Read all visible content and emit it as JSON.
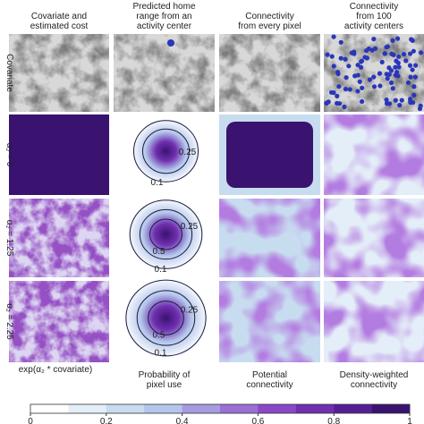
{
  "column_headers": [
    [
      "Covariate and",
      "estimated cost"
    ],
    [
      "Predicted home",
      "range from an",
      "activity center"
    ],
    [
      "Connectivity",
      "from every pixel"
    ],
    [
      "Connectivity",
      "from 100",
      "activity centers"
    ]
  ],
  "row_labels": [
    "Covariate",
    "α₂ = 0",
    "α₂ = 1.25",
    "α₂ = 2.25"
  ],
  "contour_labels": [
    [
      "0.25",
      "0.1"
    ],
    [
      "0.25",
      "0.5",
      "0.1"
    ],
    [
      "0.25",
      "0.5",
      "0.1"
    ]
  ],
  "bottom_labels": [
    [
      "exp(α₂ * covariate)"
    ],
    [
      "Probability of",
      "pixel use"
    ],
    [
      "Potential",
      "connectivity"
    ],
    [
      "Density-weighted",
      "connectivity"
    ]
  ],
  "colorbar": {
    "lim": [
      0,
      1
    ],
    "ticks": [
      0,
      0.2,
      0.4,
      0.6,
      0.8,
      1
    ],
    "colors": [
      "#ffffff",
      "#e4eef8",
      "#c8dcf0",
      "#b3c6ea",
      "#a59be0",
      "#9a6fd6",
      "#8a48c8",
      "#7030b0",
      "#561f94",
      "#3a1270"
    ]
  }
}
